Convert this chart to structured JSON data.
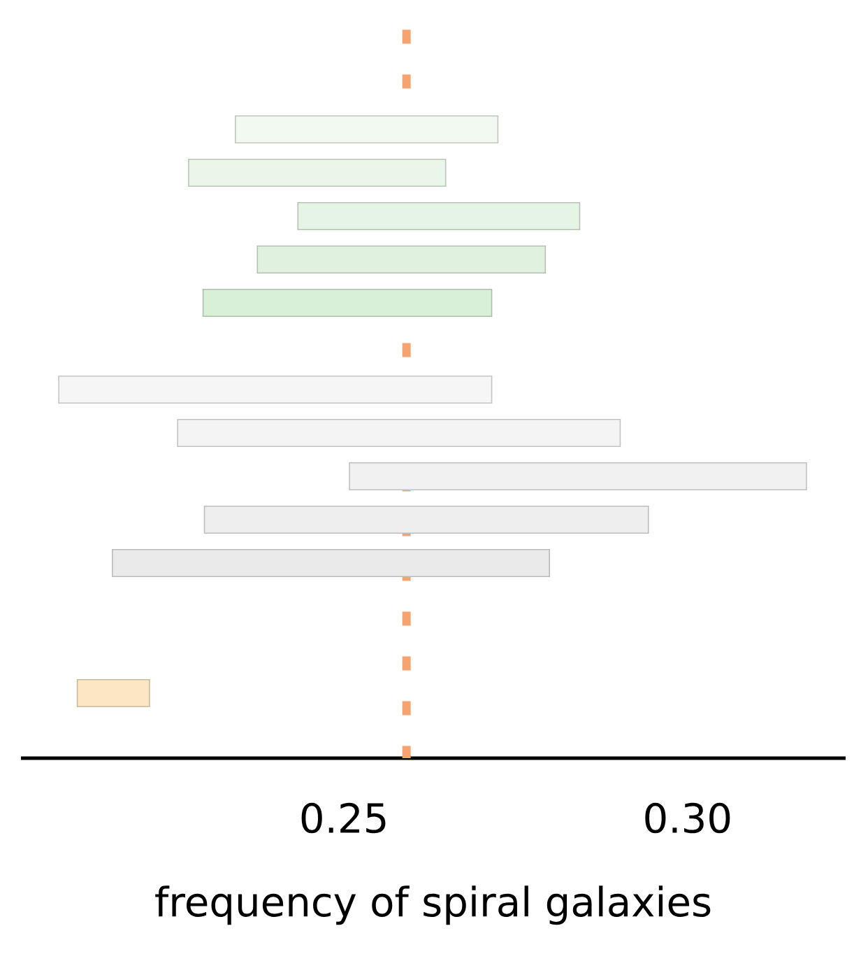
{
  "chart_data": {
    "type": "bar",
    "orientation": "horizontal",
    "xlabel": "frequency of spiral galaxies",
    "categories": [
      null,
      null,
      null,
      null,
      null,
      null,
      null,
      null,
      null,
      null,
      null,
      null,
      null,
      null,
      null,
      null,
      null
    ],
    "base": [
      null,
      null,
      0.2342,
      0.2274,
      0.2433,
      0.2374,
      0.2295,
      null,
      0.2085,
      0.2258,
      0.2508,
      0.2297,
      0.2163,
      null,
      null,
      0.2112,
      null
    ],
    "values": [
      null,
      null,
      0.0382,
      0.0374,
      0.041,
      0.0419,
      0.042,
      null,
      0.063,
      0.0644,
      0.0665,
      0.0646,
      0.0636,
      null,
      null,
      0.0105,
      null
    ],
    "colors": [
      null,
      null,
      "#f1f9f0",
      "#eaf6e9",
      "#e5f4e4",
      "#e0f2df",
      "#d8efd8",
      null,
      "#f6f6f6",
      "#f4f4f4",
      "#f1f1f1",
      "#eeeeee",
      "#eaeaea",
      null,
      null,
      "#fde6c4",
      null
    ],
    "xlim": [
      0.203,
      0.323
    ],
    "xticks": [
      0.25,
      {
        "value": 0.3,
        "label": "0.30"
      }
    ],
    "tick_labels": "x",
    "ref_lines": [
      {
        "axis": "x",
        "value": 0.2591,
        "color": "#f4a473",
        "line_style": "dotted"
      }
    ]
  }
}
